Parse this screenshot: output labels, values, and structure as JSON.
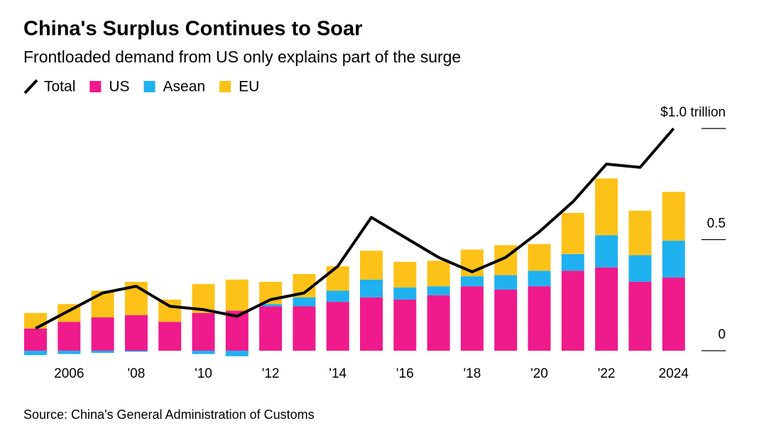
{
  "chart_data": {
    "type": "bar",
    "stacked": true,
    "title": "China's Surplus Continues to Soar",
    "subtitle": "Frontloaded demand from US only explains part of the surge",
    "source": "Source: China's General Administration of Customs",
    "categories": [
      null,
      "2006",
      null,
      "'08",
      null,
      "'10",
      null,
      "'12",
      null,
      "'14",
      null,
      "'16",
      null,
      "'18",
      null,
      "'20",
      null,
      "'22",
      null,
      "2024"
    ],
    "series": [
      {
        "name": "Total",
        "type": "line",
        "color": "#000000",
        "values": [
          0.1,
          0.18,
          0.26,
          0.29,
          0.2,
          0.185,
          0.155,
          0.23,
          0.26,
          0.38,
          0.6,
          0.51,
          0.42,
          0.355,
          0.42,
          0.535,
          0.67,
          0.84,
          0.825,
          1.0
        ]
      },
      {
        "name": "US",
        "type": "bar",
        "color": "#ef1a8c",
        "values": [
          0.1,
          0.13,
          0.15,
          0.16,
          0.13,
          0.17,
          0.18,
          0.2,
          0.2,
          0.22,
          0.24,
          0.23,
          0.25,
          0.29,
          0.275,
          0.29,
          0.36,
          0.375,
          0.31,
          0.33
        ]
      },
      {
        "name": "Asean",
        "type": "bar",
        "color": "#1fb1f0",
        "values": [
          -0.02,
          -0.015,
          -0.01,
          -0.005,
          0.0,
          -0.015,
          -0.025,
          0.01,
          0.04,
          0.05,
          0.08,
          0.055,
          0.04,
          0.045,
          0.065,
          0.07,
          0.075,
          0.145,
          0.12,
          0.165
        ]
      },
      {
        "name": "EU",
        "type": "bar",
        "color": "#fdc218",
        "values": [
          0.07,
          0.08,
          0.12,
          0.15,
          0.1,
          0.13,
          0.14,
          0.1,
          0.105,
          0.11,
          0.13,
          0.115,
          0.115,
          0.12,
          0.135,
          0.12,
          0.185,
          0.255,
          0.2,
          0.22
        ]
      }
    ],
    "ylim": [
      -0.04,
      1.0
    ],
    "yticks": [
      0,
      0.5,
      {
        "value": 1.0,
        "label": "$1.0 trillion"
      }
    ]
  }
}
